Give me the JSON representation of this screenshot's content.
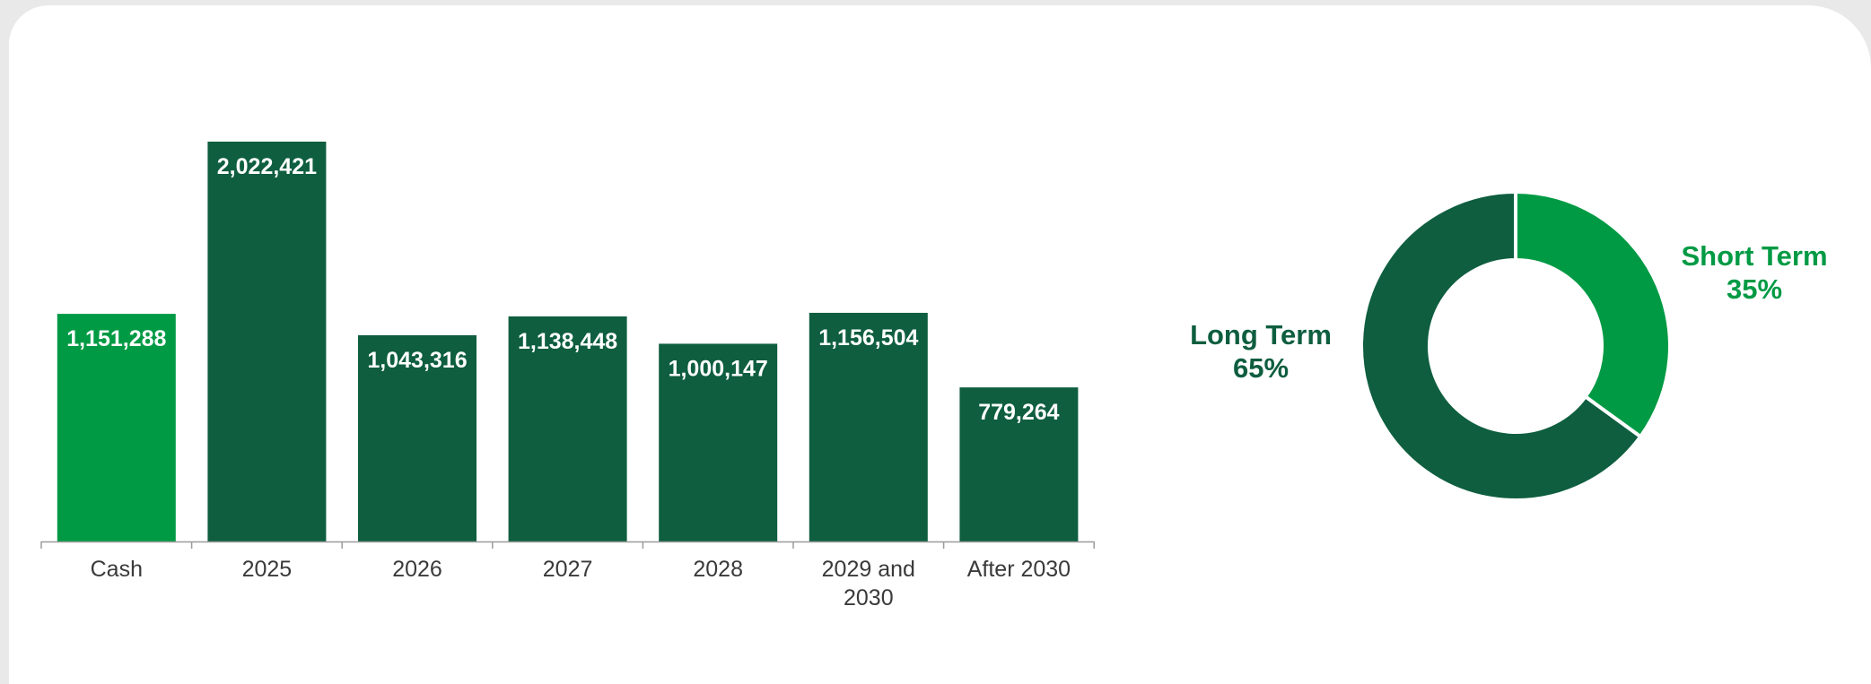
{
  "colors": {
    "accent": "#009A44",
    "primary": "#0E5E3F",
    "axis": "#9a9a9a",
    "tick_text": "#3a3a3a"
  },
  "chart_data": [
    {
      "type": "bar",
      "categories": [
        "Cash",
        "2025",
        "2026",
        "2027",
        "2028",
        "2029 and 2030",
        "After 2030"
      ],
      "values": [
        1151288,
        2022421,
        1043316,
        1138448,
        1000147,
        1156504,
        779264
      ],
      "value_labels": [
        "1,151,288",
        "2,022,421",
        "1,043,316",
        "1,138,448",
        "1,000,147",
        "1,156,504",
        "779,264"
      ],
      "highlight_index": 0,
      "ylim": [
        0,
        2022421
      ],
      "grid": false,
      "legend": "none"
    },
    {
      "type": "pie",
      "style": "donut",
      "slices": [
        {
          "name": "Short Term",
          "value": 35,
          "label": "35%",
          "color": "#009A44"
        },
        {
          "name": "Long Term",
          "value": 65,
          "label": "65%",
          "color": "#0E5E3F"
        }
      ]
    }
  ]
}
